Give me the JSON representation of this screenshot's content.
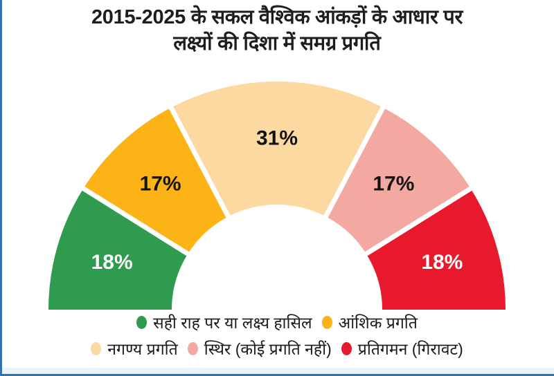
{
  "title": {
    "line1": "2015-2025 के सकल वैश्विक आंकड़ों के आधार पर",
    "line2": "लक्ष्यों की दिशा में समग्र प्रगति"
  },
  "chart_data": {
    "type": "pie",
    "variant": "half-donut",
    "title": "2015-2025 के सकल वैश्विक आंकड़ों के आधार पर लक्ष्यों की दिशा में समग्र प्रगति",
    "categories": [
      "सही राह पर या लक्ष्य हासिल",
      "आंशिक प्रगति",
      "नगण्य प्रगति",
      "स्थिर (कोई प्रगति नहीं)",
      "प्रतिगमन (गिरावट)"
    ],
    "values": [
      18,
      17,
      31,
      17,
      18
    ],
    "unit": "%",
    "data_labels": [
      "18%",
      "17%",
      "31%",
      "17%",
      "18%"
    ],
    "colors": [
      "#2e9b4f",
      "#fbb316",
      "#fbd9a0",
      "#f4a8a2",
      "#e8192c"
    ],
    "label_text_colors": [
      "#ffffff",
      "#131313",
      "#131313",
      "#131313",
      "#ffffff"
    ],
    "start_angle_deg": 180,
    "end_angle_deg": 0,
    "legend_position": "bottom",
    "legend_rows": [
      [
        0,
        1
      ],
      [
        2,
        3,
        4
      ]
    ]
  },
  "frame": {
    "left_border_color": "#3572ac",
    "bottom_border_color": "#3572ac",
    "bottom_strip_color": "#e9f4fa",
    "background_color": "#ffffff"
  }
}
